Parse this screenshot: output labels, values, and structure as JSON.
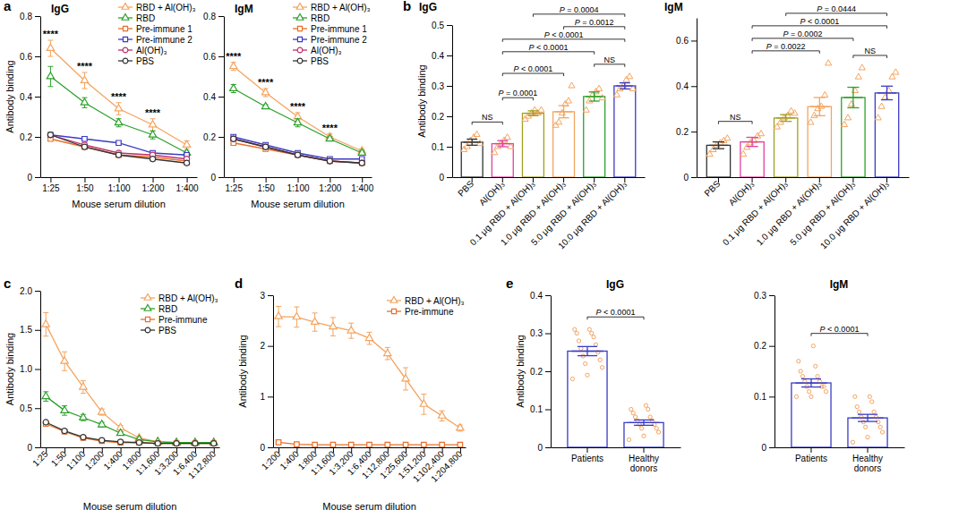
{
  "chart_data": [
    {
      "type": "line",
      "panel": "a",
      "title": "IgG",
      "x_label": "Mouse serum dilution",
      "y_label": "Antibody binding",
      "categories": [
        "1:25",
        "1:50",
        "1:100",
        "1:200",
        "1:400"
      ],
      "ylim": [
        0,
        0.8
      ],
      "yticks": [
        0,
        0.2,
        0.4,
        0.6,
        0.8
      ],
      "legend": "top-right",
      "series": [
        {
          "name": "RBD + Al(OH)₃",
          "color": "#f4a460",
          "marker": "triangle",
          "values": [
            0.64,
            0.48,
            0.34,
            0.26,
            0.16
          ],
          "errors": [
            0.04,
            0.04,
            0.03,
            0.03,
            0.02
          ]
        },
        {
          "name": "RBD",
          "color": "#2ca02c",
          "marker": "triangle",
          "values": [
            0.5,
            0.37,
            0.27,
            0.21,
            0.12
          ],
          "errors": [
            0.05,
            0.025,
            0.02,
            0.02,
            0.01
          ]
        },
        {
          "name": "Pre-immune 1",
          "color": "#e8702a",
          "marker": "square",
          "values": [
            0.19,
            0.15,
            0.11,
            0.1,
            0.08
          ],
          "errors": [
            0.01,
            0.01,
            0.01,
            0.01,
            0.01
          ]
        },
        {
          "name": "Pre-immune 2",
          "color": "#3b3bc4",
          "marker": "square",
          "values": [
            0.21,
            0.19,
            0.17,
            0.12,
            0.11
          ],
          "errors": [
            0.01,
            0.01,
            0.01,
            0.01,
            0.01
          ]
        },
        {
          "name": "Al(OH)₃",
          "color": "#c0306a",
          "marker": "circle",
          "values": [
            0.21,
            0.16,
            0.12,
            0.11,
            0.09
          ],
          "errors": [
            0.01,
            0.01,
            0.01,
            0.01,
            0.01
          ]
        },
        {
          "name": "PBS",
          "color": "#333333",
          "marker": "circle",
          "values": [
            0.21,
            0.15,
            0.11,
            0.09,
            0.07
          ],
          "errors": [
            0.01,
            0.01,
            0.01,
            0.01,
            0.01
          ]
        }
      ],
      "annotations": [
        {
          "category": "1:25",
          "label": "****"
        },
        {
          "category": "1:50",
          "label": "****"
        },
        {
          "category": "1:100",
          "label": "****"
        },
        {
          "category": "1:200",
          "label": "****"
        }
      ]
    },
    {
      "type": "line",
      "title": "IgM",
      "x_label": "Mouse serum dilution",
      "categories": [
        "1:25",
        "1:50",
        "1:100",
        "1:200",
        "1:400"
      ],
      "ylim": [
        0,
        0.8
      ],
      "yticks": [
        0,
        0.2,
        0.4,
        0.6,
        0.8
      ],
      "legend": "top-right",
      "series": [
        {
          "name": "RBD + Al(OH)₃",
          "color": "#f4a460",
          "marker": "triangle",
          "values": [
            0.55,
            0.42,
            0.3,
            0.2,
            0.13
          ],
          "errors": [
            0.02,
            0.02,
            0.02,
            0.015,
            0.01
          ]
        },
        {
          "name": "RBD",
          "color": "#2ca02c",
          "marker": "triangle",
          "values": [
            0.44,
            0.35,
            0.27,
            0.19,
            0.12
          ],
          "errors": [
            0.02,
            0.01,
            0.02,
            0.01,
            0.01
          ]
        },
        {
          "name": "Pre-immune 1",
          "color": "#e8702a",
          "marker": "square",
          "values": [
            0.17,
            0.14,
            0.11,
            0.08,
            0.07
          ],
          "errors": [
            0.01,
            0.01,
            0.01,
            0.01,
            0.01
          ]
        },
        {
          "name": "Pre-immune 2",
          "color": "#3b3bc4",
          "marker": "square",
          "values": [
            0.2,
            0.16,
            0.12,
            0.09,
            0.09
          ],
          "errors": [
            0.01,
            0.01,
            0.01,
            0.01,
            0.01
          ]
        },
        {
          "name": "Al(OH)₃",
          "color": "#c0306a",
          "marker": "circle",
          "values": [
            0.19,
            0.15,
            0.11,
            0.08,
            0.07
          ],
          "errors": [
            0.01,
            0.01,
            0.01,
            0.01,
            0.01
          ]
        },
        {
          "name": "PBS",
          "color": "#333333",
          "marker": "circle",
          "values": [
            0.19,
            0.15,
            0.11,
            0.08,
            0.07
          ],
          "errors": [
            0.01,
            0.01,
            0.01,
            0.01,
            0.01
          ]
        }
      ],
      "annotations": [
        {
          "category": "1:25",
          "label": "****"
        },
        {
          "category": "1:50",
          "label": "****"
        },
        {
          "category": "1:100",
          "label": "****"
        },
        {
          "category": "1:200",
          "label": "****"
        }
      ]
    },
    {
      "type": "bar",
      "panel": "b",
      "title": "IgG",
      "y_label": "Antibody binding",
      "categories": [
        "PBS",
        "Al(OH)₃",
        "0.1 μg RBD + Al(OH)₃",
        "1.0 μg RBD + Al(OH)₃",
        "5.0 μg RBD + Al(OH)₃",
        "10.0 μg RBD + Al(OH)₃"
      ],
      "values": [
        0.115,
        0.11,
        0.21,
        0.215,
        0.265,
        0.3
      ],
      "errors": [
        0.01,
        0.01,
        0.008,
        0.02,
        0.015,
        0.01
      ],
      "colors": [
        "#333333",
        "#e040a0",
        "#a0a020",
        "#f4a460",
        "#2ca02c",
        "#3b3bc4"
      ],
      "points": [
        [
          0.09,
          0.1,
          0.12,
          0.13,
          0.14,
          0.11
        ],
        [
          0.08,
          0.1,
          0.11,
          0.12,
          0.13,
          0.1
        ],
        [
          0.19,
          0.2,
          0.21,
          0.22,
          0.21,
          0.22
        ],
        [
          0.17,
          0.18,
          0.21,
          0.24,
          0.25,
          0.3
        ],
        [
          0.22,
          0.25,
          0.27,
          0.28,
          0.29,
          0.26
        ],
        [
          0.27,
          0.29,
          0.3,
          0.32,
          0.33,
          0.29
        ]
      ],
      "color": "#f4a460",
      "marker": "triangle",
      "ylim": [
        0,
        0.5
      ],
      "yticks": [
        0,
        0.1,
        0.2,
        0.3,
        0.4,
        0.5
      ],
      "annotations": [
        {
          "from": "PBS",
          "to": "Al(OH)₃",
          "label": "NS"
        },
        {
          "from": "Al(OH)₃",
          "to": "0.1 μg RBD + Al(OH)₃",
          "label": "P = 0.0001"
        },
        {
          "from": "5.0 μg RBD + Al(OH)₃",
          "to": "10.0 μg RBD + Al(OH)₃",
          "label": "NS"
        },
        {
          "from": "Al(OH)₃",
          "to": "1.0 μg RBD + Al(OH)₃",
          "label": "P < 0.0001"
        },
        {
          "from": "Al(OH)₃",
          "to": "5.0 μg RBD + Al(OH)₃",
          "label": "P < 0.0001"
        },
        {
          "from": "Al(OH)₃",
          "to": "10.0 μg RBD + Al(OH)₃",
          "label": "P < 0.0001"
        },
        {
          "from": "1.0 μg RBD + Al(OH)₃",
          "to": "10.0 μg RBD + Al(OH)₃",
          "label": "P = 0.0012"
        },
        {
          "from": "0.1 μg RBD + Al(OH)₃",
          "to": "10.0 μg RBD + Al(OH)₃",
          "label": "P = 0.0004"
        }
      ]
    },
    {
      "type": "bar",
      "title": "IgM",
      "categories": [
        "PBS",
        "Al(OH)₃",
        "0.1 μg RBD + Al(OH)₃",
        "1.0 μg RBD + Al(OH)₃",
        "5.0 μg RBD + Al(OH)₃",
        "10.0 μg RBD + Al(OH)₃"
      ],
      "values": [
        0.14,
        0.155,
        0.26,
        0.31,
        0.35,
        0.37
      ],
      "errors": [
        0.015,
        0.02,
        0.015,
        0.04,
        0.045,
        0.03
      ],
      "colors": [
        "#333333",
        "#e040a0",
        "#a0a020",
        "#f4a460",
        "#2ca02c",
        "#3b3bc4"
      ],
      "points": [
        [
          0.1,
          0.12,
          0.14,
          0.15,
          0.16,
          0.17
        ],
        [
          0.1,
          0.13,
          0.15,
          0.16,
          0.18,
          0.19
        ],
        [
          0.22,
          0.24,
          0.26,
          0.27,
          0.29,
          0.28
        ],
        [
          0.24,
          0.27,
          0.3,
          0.31,
          0.36,
          0.5
        ],
        [
          0.23,
          0.26,
          0.32,
          0.38,
          0.44,
          0.48
        ],
        [
          0.26,
          0.31,
          0.35,
          0.38,
          0.44,
          0.46
        ]
      ],
      "color": "#f4a460",
      "marker": "triangle",
      "ylim": [
        0,
        0.7
      ],
      "yticks": [
        0,
        0.2,
        0.4,
        0.6
      ],
      "annotations": [
        {
          "from": "PBS",
          "to": "Al(OH)₃",
          "label": "NS"
        },
        {
          "from": "5.0 μg RBD + Al(OH)₃",
          "to": "10.0 μg RBD + Al(OH)₃",
          "label": "NS"
        },
        {
          "from": "Al(OH)₃",
          "to": "1.0 μg RBD + Al(OH)₃",
          "label": "P = 0.0022"
        },
        {
          "from": "Al(OH)₃",
          "to": "5.0 μg RBD + Al(OH)₃",
          "label": "P = 0.0002"
        },
        {
          "from": "Al(OH)₃",
          "to": "10.0 μg RBD + Al(OH)₃",
          "label": "P < 0.0001"
        },
        {
          "from": "0.1 μg RBD + Al(OH)₃",
          "to": "10.0 μg RBD + Al(OH)₃",
          "label": "P = 0.0444"
        }
      ]
    },
    {
      "type": "line",
      "panel": "c",
      "x_label": "Mouse serum dilution",
      "y_label": "Antibody binding",
      "categories": [
        "1:25",
        "1:50",
        "1:100",
        "1:200",
        "1:400",
        "1:800",
        "1:1,600",
        "1:3,200",
        "1:6,400",
        "1:12,800"
      ],
      "ylim": [
        0,
        2
      ],
      "yticks": [
        0,
        0.5,
        {
          "value": 1,
          "label": "1.0"
        },
        1.5,
        {
          "value": 2,
          "label": "2.0"
        }
      ],
      "legend": "top-right",
      "series": [
        {
          "name": "RBD + Al(OH)₃",
          "color": "#f4a460",
          "marker": "triangle",
          "values": [
            1.57,
            1.1,
            0.77,
            0.45,
            0.25,
            0.12,
            0.07,
            0.06,
            0.06,
            0.06
          ],
          "errors": [
            0.15,
            0.12,
            0.08,
            0.04,
            0.03,
            0.02,
            0.01,
            0.01,
            0.01,
            0.01
          ]
        },
        {
          "name": "RBD",
          "color": "#2ca02c",
          "marker": "triangle",
          "values": [
            0.65,
            0.47,
            0.38,
            0.29,
            0.18,
            0.1,
            0.07,
            0.06,
            0.06,
            0.06
          ],
          "errors": [
            0.06,
            0.06,
            0.04,
            0.03,
            0.02,
            0.01,
            0.01,
            0.01,
            0.01,
            0.01
          ]
        },
        {
          "name": "Pre-immune",
          "color": "#e8702a",
          "marker": "square",
          "values": [
            0.3,
            0.2,
            0.12,
            0.08,
            0.06,
            0.06,
            0.05,
            0.05,
            0.05,
            0.05
          ],
          "errors": [
            0.01,
            0.01,
            0.01,
            0.01,
            0.01,
            0.01,
            0.01,
            0.01,
            0.01,
            0.01
          ]
        },
        {
          "name": "PBS",
          "color": "#333333",
          "marker": "circle",
          "values": [
            0.32,
            0.21,
            0.13,
            0.09,
            0.07,
            0.06,
            0.05,
            0.05,
            0.05,
            0.05
          ],
          "errors": [
            0.01,
            0.01,
            0.01,
            0.01,
            0.01,
            0.01,
            0.01,
            0.01,
            0.01,
            0.01
          ]
        }
      ]
    },
    {
      "type": "line",
      "panel": "d",
      "x_label": "Mouse serum dilution",
      "y_label": "Antibody binding",
      "categories": [
        "1:200",
        "1:400",
        "1:800",
        "1:1,600",
        "1:3,200",
        "1:6,400",
        "1:12,800",
        "1:25,600",
        "1:51,200",
        "1:102,400",
        "1:204,800"
      ],
      "ylim": [
        0,
        3
      ],
      "yticks": [
        0,
        1,
        2,
        3
      ],
      "legend": "top-right",
      "series": [
        {
          "name": "RBD + Al(OH)₃",
          "color": "#f4a460",
          "marker": "triangle",
          "values": [
            2.58,
            2.57,
            2.47,
            2.38,
            2.3,
            2.15,
            1.85,
            1.35,
            0.85,
            0.62,
            0.38
          ],
          "errors": [
            0.2,
            0.2,
            0.18,
            0.18,
            0.15,
            0.12,
            0.12,
            0.22,
            0.2,
            0.1,
            0.06
          ]
        },
        {
          "name": "Pre-immune",
          "color": "#e8702a",
          "marker": "square",
          "values": [
            0.1,
            0.06,
            0.05,
            0.05,
            0.05,
            0.05,
            0.05,
            0.05,
            0.05,
            0.05,
            0.05
          ],
          "errors": [
            0.01,
            0.01,
            0.01,
            0.01,
            0.01,
            0.01,
            0.01,
            0.01,
            0.01,
            0.01,
            0.01
          ]
        }
      ]
    },
    {
      "type": "bar",
      "panel": "e",
      "title": "IgG",
      "y_label": "Antibody binding",
      "categories": [
        "Patients",
        "Healthy donors"
      ],
      "values": [
        0.253,
        0.065
      ],
      "errors": [
        0.012,
        0.007
      ],
      "colors": [
        "#3b3bc4",
        "#3b3bc4"
      ],
      "points": [
        [
          0.18,
          0.19,
          0.21,
          0.22,
          0.23,
          0.24,
          0.25,
          0.26,
          0.27,
          0.28,
          0.29,
          0.3,
          0.3,
          0.31,
          0.31
        ],
        [
          0.02,
          0.03,
          0.04,
          0.05,
          0.05,
          0.06,
          0.06,
          0.07,
          0.07,
          0.08,
          0.08,
          0.09,
          0.1,
          0.1,
          0.11
        ]
      ],
      "color": "#f4a460",
      "marker": "circle",
      "ylim": [
        0,
        0.4
      ],
      "yticks": [
        0,
        0.1,
        0.2,
        0.3,
        0.4
      ],
      "annotations": [
        {
          "from": "Patients",
          "to": "Healthy donors",
          "label": "P < 0.0001"
        }
      ]
    },
    {
      "type": "bar",
      "title": "IgM",
      "categories": [
        "Patients",
        "Healthy donors"
      ],
      "values": [
        0.127,
        0.058
      ],
      "errors": [
        0.008,
        0.007
      ],
      "colors": [
        "#3b3bc4",
        "#3b3bc4"
      ],
      "points": [
        [
          0.1,
          0.1,
          0.11,
          0.11,
          0.12,
          0.12,
          0.12,
          0.13,
          0.13,
          0.14,
          0.14,
          0.15,
          0.16,
          0.17,
          0.2
        ],
        [
          0.01,
          0.02,
          0.03,
          0.04,
          0.04,
          0.05,
          0.05,
          0.06,
          0.06,
          0.07,
          0.07,
          0.08,
          0.09,
          0.1,
          0.1
        ]
      ],
      "color": "#f4a460",
      "marker": "circle",
      "ylim": [
        0,
        0.3
      ],
      "yticks": [
        0,
        0.1,
        0.2,
        0.3
      ],
      "annotations": [
        {
          "from": "Patients",
          "to": "Healthy donors",
          "label": "P < 0.0001"
        }
      ]
    }
  ]
}
